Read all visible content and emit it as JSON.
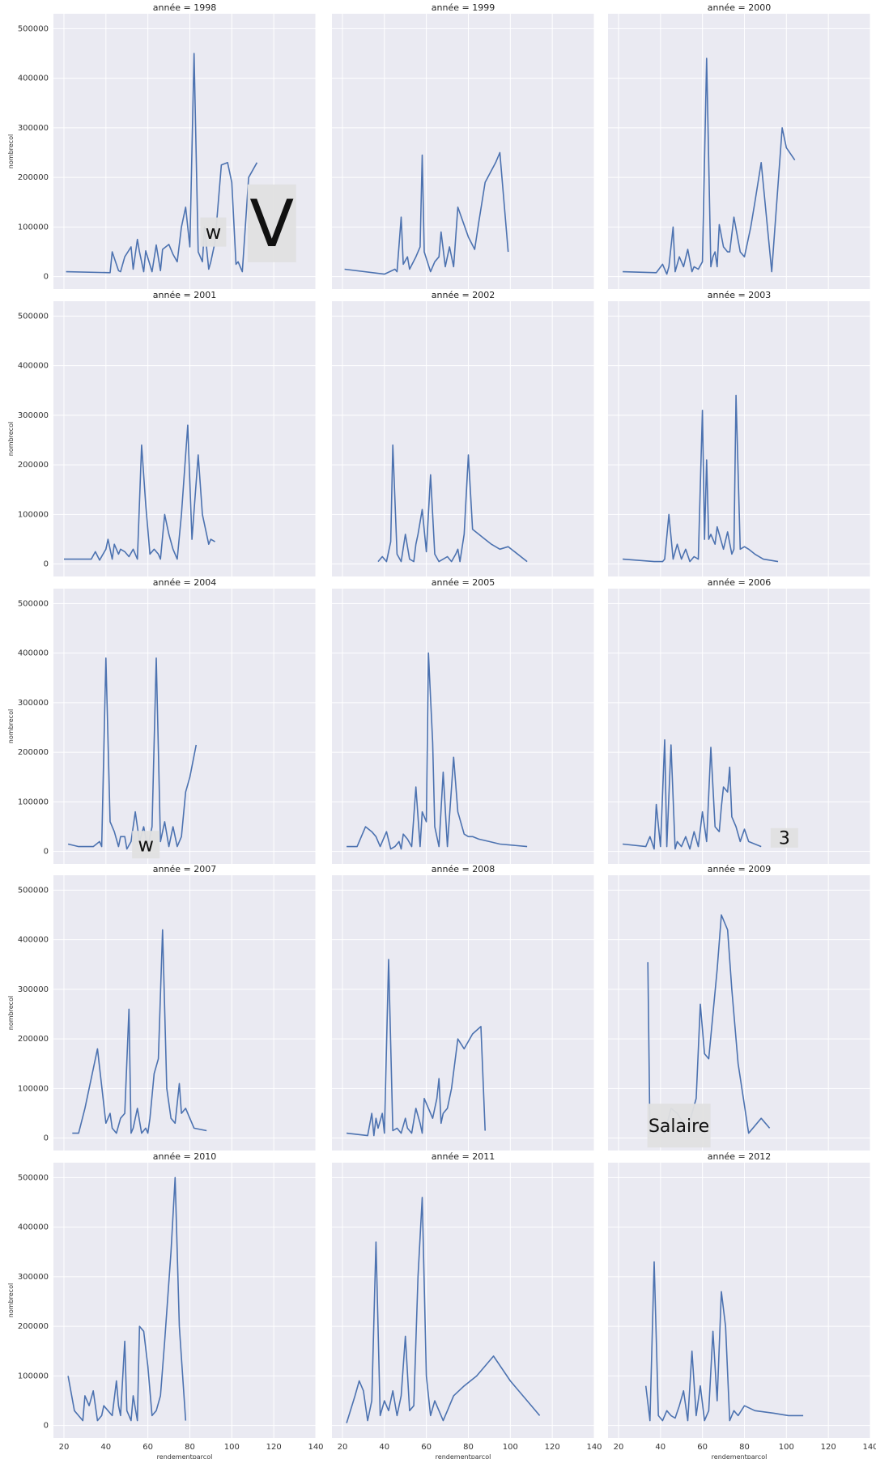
{
  "chart_data": {
    "type": "line",
    "facet_variable": "année",
    "xlabel": "rendementparcol",
    "ylabel": "nombrecol",
    "xlim": [
      15,
      140
    ],
    "ylim": [
      -25000,
      530000
    ],
    "x_ticks": [
      20,
      40,
      60,
      80,
      100,
      120,
      140
    ],
    "y_ticks": [
      0,
      100000,
      200000,
      300000,
      400000,
      500000
    ],
    "grid": true,
    "line_color": "#4c72b0",
    "background_color": "#eaeaf2",
    "panels": [
      {
        "title": "année = 1998",
        "x": [
          21,
          42,
          43,
          46,
          47,
          49,
          52,
          53,
          55,
          56,
          58,
          59,
          62,
          64,
          66,
          67,
          70,
          72,
          74,
          76,
          78,
          80,
          82,
          84,
          86,
          87,
          89,
          90,
          92,
          95,
          98,
          100,
          102,
          103,
          105,
          108,
          112
        ],
        "y": [
          10000,
          8000,
          50000,
          12000,
          10000,
          40000,
          60000,
          15000,
          75000,
          50000,
          10000,
          52000,
          10000,
          64000,
          12000,
          55000,
          65000,
          45000,
          30000,
          100000,
          140000,
          60000,
          450000,
          50000,
          30000,
          100000,
          15000,
          30000,
          70000,
          225000,
          230000,
          190000,
          25000,
          30000,
          10000,
          200000,
          230000
        ]
      },
      {
        "title": "année = 1999",
        "x": [
          21,
          40,
          45,
          46,
          48,
          49,
          51,
          52,
          55,
          57,
          58,
          59,
          62,
          64,
          66,
          67,
          69,
          71,
          73,
          75,
          80,
          83,
          85,
          88,
          93,
          95,
          99
        ],
        "y": [
          15000,
          5000,
          15000,
          10000,
          120000,
          25000,
          40000,
          15000,
          40000,
          60000,
          245000,
          50000,
          10000,
          30000,
          40000,
          90000,
          20000,
          60000,
          20000,
          140000,
          80000,
          55000,
          110000,
          190000,
          230000,
          250000,
          50000
        ]
      },
      {
        "title": "année = 2000",
        "x": [
          22,
          38,
          41,
          43,
          44,
          46,
          47,
          49,
          51,
          53,
          55,
          56,
          58,
          60,
          62,
          64,
          65,
          66,
          67,
          68,
          70,
          72,
          73,
          75,
          78,
          80,
          83,
          85,
          88,
          93,
          98,
          100,
          104
        ],
        "y": [
          10000,
          8000,
          25000,
          5000,
          20000,
          100000,
          10000,
          40000,
          20000,
          55000,
          10000,
          20000,
          15000,
          30000,
          440000,
          20000,
          40000,
          50000,
          20000,
          105000,
          60000,
          50000,
          50000,
          120000,
          50000,
          40000,
          100000,
          150000,
          230000,
          10000,
          300000,
          260000,
          235000
        ]
      },
      {
        "title": "année = 2001",
        "x": [
          20,
          33,
          35,
          37,
          40,
          41,
          43,
          44,
          46,
          47,
          49,
          51,
          53,
          55,
          57,
          59,
          61,
          63,
          65,
          66,
          68,
          70,
          72,
          74,
          76,
          79,
          81,
          84,
          86,
          89,
          90,
          92
        ],
        "y": [
          10000,
          10000,
          25000,
          8000,
          30000,
          50000,
          10000,
          40000,
          20000,
          30000,
          25000,
          15000,
          30000,
          10000,
          240000,
          120000,
          20000,
          30000,
          20000,
          10000,
          100000,
          60000,
          30000,
          10000,
          100000,
          280000,
          50000,
          220000,
          100000,
          40000,
          50000,
          45000
        ]
      },
      {
        "title": "année = 2002",
        "x": [
          37,
          39,
          41,
          43,
          44,
          46,
          48,
          50,
          52,
          54,
          55,
          56,
          58,
          60,
          62,
          64,
          66,
          68,
          70,
          72,
          74,
          75,
          76,
          78,
          80,
          82,
          85,
          88,
          91,
          95,
          99,
          108
        ],
        "y": [
          5000,
          15000,
          5000,
          45000,
          240000,
          20000,
          5000,
          60000,
          10000,
          5000,
          40000,
          60000,
          110000,
          25000,
          180000,
          20000,
          5000,
          10000,
          15000,
          5000,
          20000,
          30000,
          5000,
          60000,
          220000,
          70000,
          60000,
          50000,
          40000,
          30000,
          35000,
          5000
        ]
      },
      {
        "title": "année = 2003",
        "x": [
          22,
          37,
          39,
          41,
          42,
          44,
          46,
          48,
          50,
          52,
          54,
          56,
          58,
          60,
          61,
          62,
          63,
          64,
          66,
          67,
          68,
          70,
          72,
          74,
          75,
          76,
          78,
          80,
          82,
          85,
          89,
          96
        ],
        "y": [
          10000,
          5000,
          5000,
          5000,
          10000,
          100000,
          10000,
          40000,
          10000,
          30000,
          5000,
          15000,
          10000,
          310000,
          50000,
          210000,
          50000,
          60000,
          40000,
          75000,
          60000,
          30000,
          65000,
          20000,
          30000,
          340000,
          30000,
          35000,
          30000,
          20000,
          10000,
          5000
        ]
      },
      {
        "title": "année = 2004",
        "x": [
          22,
          27,
          31,
          34,
          37,
          38,
          40,
          42,
          44,
          46,
          47,
          49,
          50,
          52,
          54,
          56,
          58,
          60,
          61,
          62,
          64,
          66,
          68,
          70,
          72,
          74,
          76,
          78,
          80,
          83
        ],
        "y": [
          15000,
          10000,
          10000,
          10000,
          20000,
          10000,
          390000,
          60000,
          40000,
          10000,
          30000,
          30000,
          5000,
          20000,
          80000,
          20000,
          50000,
          5000,
          30000,
          50000,
          390000,
          20000,
          60000,
          10000,
          50000,
          10000,
          30000,
          120000,
          150000,
          215000
        ]
      },
      {
        "title": "année = 2005",
        "x": [
          22,
          27,
          31,
          34,
          36,
          38,
          41,
          43,
          45,
          47,
          48,
          49,
          51,
          53,
          55,
          57,
          58,
          60,
          61,
          63,
          64,
          66,
          68,
          70,
          73,
          75,
          78,
          80,
          82,
          85,
          90,
          95,
          108
        ],
        "y": [
          10000,
          10000,
          50000,
          40000,
          30000,
          10000,
          40000,
          5000,
          10000,
          20000,
          5000,
          35000,
          25000,
          10000,
          130000,
          10000,
          80000,
          60000,
          400000,
          220000,
          50000,
          10000,
          160000,
          10000,
          190000,
          80000,
          35000,
          30000,
          30000,
          25000,
          20000,
          15000,
          10000
        ]
      },
      {
        "title": "année = 2006",
        "x": [
          22,
          33,
          35,
          37,
          38,
          40,
          42,
          43,
          45,
          47,
          48,
          50,
          52,
          54,
          56,
          58,
          60,
          62,
          64,
          66,
          68,
          69,
          70,
          72,
          73,
          74,
          76,
          78,
          80,
          82,
          85,
          88
        ],
        "y": [
          15000,
          10000,
          30000,
          5000,
          95000,
          10000,
          225000,
          10000,
          215000,
          5000,
          20000,
          10000,
          30000,
          5000,
          40000,
          10000,
          80000,
          20000,
          210000,
          50000,
          40000,
          90000,
          130000,
          120000,
          170000,
          70000,
          50000,
          20000,
          45000,
          20000,
          15000,
          10000
        ]
      },
      {
        "title": "année = 2007",
        "x": [
          24,
          27,
          30,
          36,
          40,
          42,
          43,
          45,
          47,
          49,
          51,
          52,
          53,
          55,
          57,
          59,
          60,
          61,
          63,
          65,
          67,
          69,
          71,
          73,
          75,
          76,
          78,
          80,
          82,
          88
        ],
        "y": [
          10000,
          10000,
          60000,
          180000,
          30000,
          50000,
          20000,
          10000,
          40000,
          50000,
          260000,
          10000,
          20000,
          60000,
          10000,
          20000,
          10000,
          40000,
          130000,
          160000,
          420000,
          100000,
          40000,
          30000,
          110000,
          50000,
          60000,
          40000,
          20000,
          15000
        ]
      },
      {
        "title": "année = 2008",
        "x": [
          22,
          32,
          34,
          35,
          36,
          37,
          39,
          40,
          42,
          44,
          46,
          48,
          50,
          51,
          53,
          55,
          57,
          58,
          59,
          61,
          63,
          65,
          66,
          67,
          68,
          70,
          72,
          75,
          78,
          82,
          86,
          88
        ],
        "y": [
          10000,
          5000,
          50000,
          5000,
          40000,
          20000,
          50000,
          10000,
          360000,
          15000,
          20000,
          10000,
          40000,
          20000,
          10000,
          60000,
          30000,
          10000,
          80000,
          60000,
          40000,
          80000,
          120000,
          30000,
          50000,
          60000,
          100000,
          200000,
          180000,
          210000,
          225000,
          15000
        ]
      },
      {
        "title": "année = 2009",
        "x": [
          34,
          35,
          37,
          38,
          40,
          42,
          45,
          48,
          51,
          53,
          55,
          57,
          59,
          61,
          63,
          65,
          67,
          69,
          72,
          74,
          77,
          82,
          88,
          92
        ],
        "y": [
          355000,
          10000,
          30000,
          10000,
          20000,
          10000,
          60000,
          50000,
          30000,
          20000,
          50000,
          80000,
          270000,
          170000,
          160000,
          250000,
          340000,
          450000,
          420000,
          300000,
          150000,
          10000,
          40000,
          20000
        ]
      },
      {
        "title": "année = 2010",
        "x": [
          22,
          25,
          29,
          30,
          32,
          34,
          36,
          38,
          39,
          41,
          43,
          45,
          46,
          47,
          49,
          50,
          52,
          53,
          55,
          56,
          58,
          60,
          62,
          64,
          66,
          68,
          71,
          73,
          75,
          78
        ],
        "y": [
          100000,
          30000,
          10000,
          60000,
          40000,
          70000,
          10000,
          20000,
          40000,
          30000,
          20000,
          90000,
          40000,
          20000,
          170000,
          30000,
          10000,
          60000,
          10000,
          200000,
          190000,
          120000,
          20000,
          30000,
          60000,
          170000,
          350000,
          500000,
          200000,
          10000
        ]
      },
      {
        "title": "année = 2011",
        "x": [
          22,
          26,
          28,
          30,
          32,
          34,
          36,
          38,
          40,
          42,
          44,
          46,
          48,
          50,
          52,
          54,
          56,
          58,
          60,
          62,
          64,
          66,
          68,
          70,
          73,
          78,
          84,
          92,
          100,
          114
        ],
        "y": [
          5000,
          60000,
          90000,
          70000,
          10000,
          50000,
          370000,
          20000,
          50000,
          30000,
          70000,
          20000,
          60000,
          180000,
          30000,
          40000,
          300000,
          460000,
          100000,
          20000,
          50000,
          30000,
          10000,
          30000,
          60000,
          80000,
          100000,
          140000,
          90000,
          20000
        ]
      },
      {
        "title": "année = 2012",
        "x": [
          33,
          35,
          37,
          39,
          41,
          43,
          45,
          47,
          49,
          51,
          53,
          55,
          57,
          59,
          61,
          63,
          65,
          67,
          69,
          71,
          73,
          75,
          77,
          80,
          85,
          94,
          101,
          108
        ],
        "y": [
          80000,
          10000,
          330000,
          20000,
          10000,
          30000,
          20000,
          15000,
          40000,
          70000,
          10000,
          150000,
          20000,
          80000,
          10000,
          30000,
          190000,
          50000,
          270000,
          200000,
          10000,
          30000,
          20000,
          40000,
          30000,
          25000,
          20000,
          20000
        ]
      }
    ]
  },
  "stickers": [
    {
      "panel": 0,
      "text": "w"
    },
    {
      "panel": 0,
      "text": "V"
    },
    {
      "panel": 6,
      "text": "w"
    },
    {
      "panel": 8,
      "text": "3"
    },
    {
      "panel": 11,
      "text": "Salaire"
    }
  ]
}
